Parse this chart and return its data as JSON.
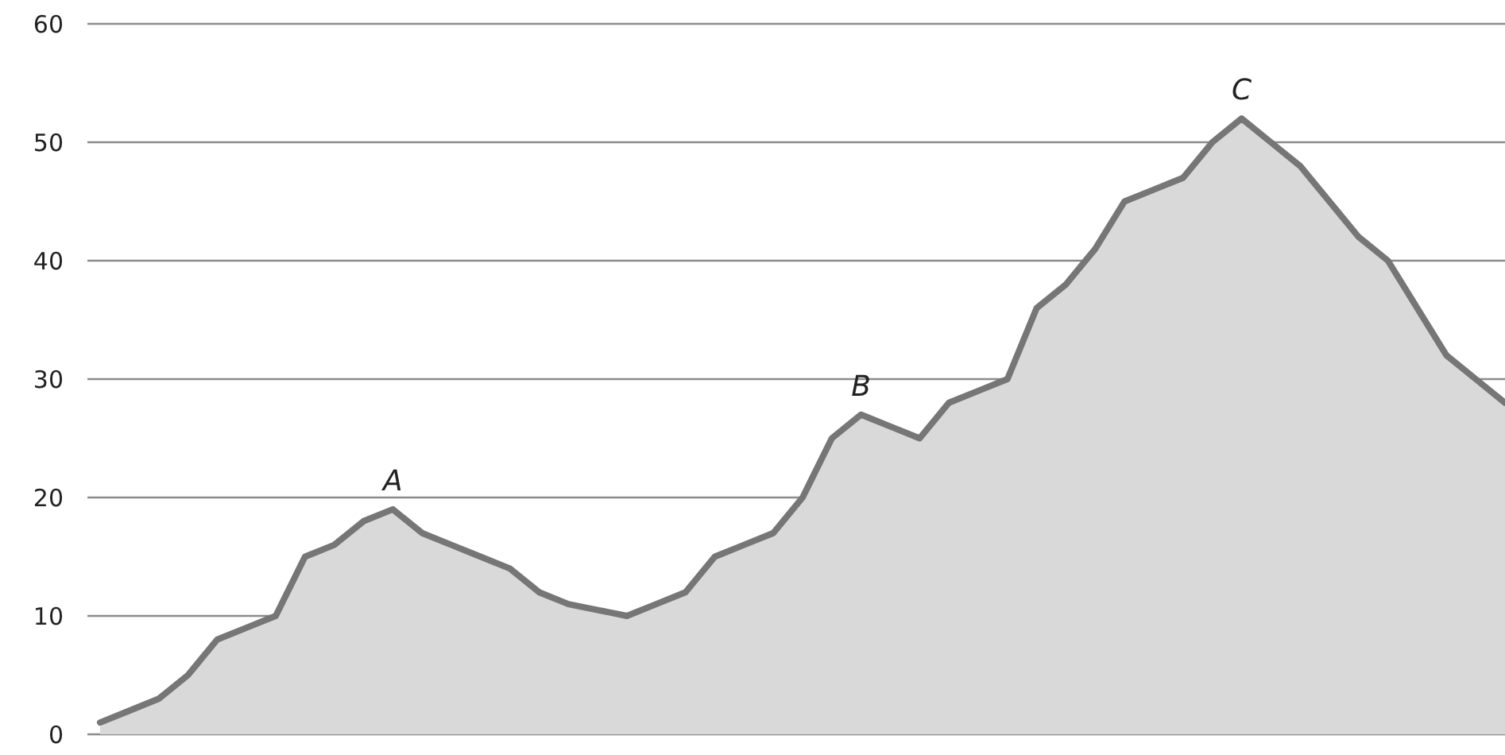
{
  "chart_data": {
    "type": "area",
    "categories": [
      null,
      null,
      null,
      null,
      null,
      null,
      null,
      null,
      null,
      null,
      null,
      null,
      null,
      null,
      null,
      null,
      null,
      null,
      null,
      null,
      null,
      null,
      null,
      null,
      null,
      null,
      null,
      null,
      null,
      null,
      null,
      null,
      null,
      null,
      null,
      null,
      null,
      null,
      null,
      null,
      null,
      null,
      null,
      null,
      null,
      null,
      null,
      null,
      null
    ],
    "series": [
      {
        "color": "#767676",
        "values": [
          1,
          2,
          3,
          5,
          8,
          9,
          10,
          15,
          16,
          18,
          19,
          17,
          16,
          15,
          14,
          12,
          11,
          10.5,
          10,
          11,
          12,
          15,
          16,
          17,
          20,
          25,
          27,
          26,
          25,
          28,
          29,
          30,
          36,
          38,
          41,
          45,
          46,
          47,
          50,
          52,
          50,
          48,
          45,
          42,
          40,
          36,
          32,
          30,
          28
        ]
      }
    ],
    "ylim": [
      0,
      60
    ],
    "yticks": [
      0,
      10,
      20,
      30,
      40,
      50,
      60
    ],
    "grid": "y",
    "annotations": [
      {
        "text": "A",
        "y": 19
      },
      {
        "text": "B",
        "y": 27
      },
      {
        "text": "C",
        "y": 52
      }
    ]
  }
}
